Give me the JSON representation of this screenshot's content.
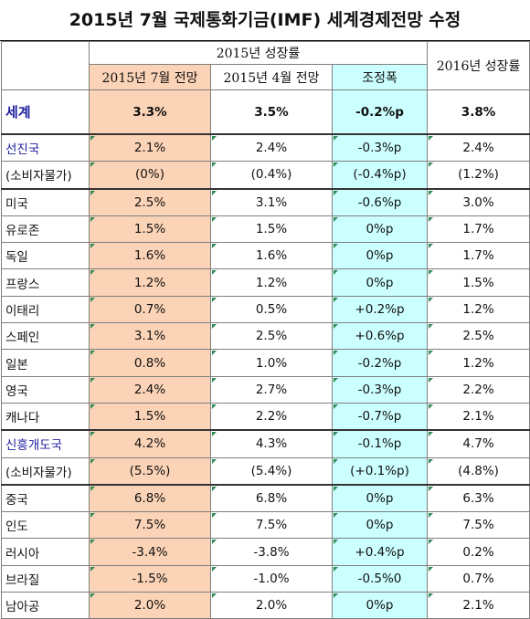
{
  "title": "2015년 7월 국제통화기금(IMF) 세계경제전망 수정",
  "header": {
    "group_2015": "2015년 성장률",
    "col_jul": "2015년 7월 전망",
    "col_apr": "2015년 4월 전망",
    "col_adj": "조정폭",
    "col_2016": "2016년 성장률"
  },
  "rows": [
    {
      "name": "세계",
      "jul": "3.3%",
      "apr": "3.5%",
      "adj": "-0.2%p",
      "y2016": "3.8%"
    },
    {
      "name": "선진국",
      "jul": "2.1%",
      "apr": "2.4%",
      "adj": "-0.3%p",
      "y2016": "2.4%"
    },
    {
      "name": "(소비자물가)",
      "jul": "(0%)",
      "apr": "(0.4%)",
      "adj": "(-0.4%p)",
      "y2016": "(1.2%)"
    },
    {
      "name": "미국",
      "jul": "2.5%",
      "apr": "3.1%",
      "adj": "-0.6%p",
      "y2016": "3.0%"
    },
    {
      "name": "유로존",
      "jul": "1.5%",
      "apr": "1.5%",
      "adj": "0%p",
      "y2016": "1.7%"
    },
    {
      "name": "독일",
      "jul": "1.6%",
      "apr": "1.6%",
      "adj": "0%p",
      "y2016": "1.7%"
    },
    {
      "name": "프랑스",
      "jul": "1.2%",
      "apr": "1.2%",
      "adj": "0%p",
      "y2016": "1.5%"
    },
    {
      "name": "이태리",
      "jul": "0.7%",
      "apr": "0.5%",
      "adj": "+0.2%p",
      "y2016": "1.2%"
    },
    {
      "name": "스페인",
      "jul": "3.1%",
      "apr": "2.5%",
      "adj": "+0.6%p",
      "y2016": "2.5%"
    },
    {
      "name": "일본",
      "jul": "0.8%",
      "apr": "1.0%",
      "adj": "-0.2%p",
      "y2016": "1.2%"
    },
    {
      "name": "영국",
      "jul": "2.4%",
      "apr": "2.7%",
      "adj": "-0.3%p",
      "y2016": "2.2%"
    },
    {
      "name": "캐나다",
      "jul": "1.5%",
      "apr": "2.2%",
      "adj": "-0.7%p",
      "y2016": "2.1%"
    },
    {
      "name": "신흥개도국",
      "jul": "4.2%",
      "apr": "4.3%",
      "adj": "-0.1%p",
      "y2016": "4.7%"
    },
    {
      "name": "(소비자물가)",
      "jul": "(5.5%)",
      "apr": "(5.4%)",
      "adj": "(+0.1%p)",
      "y2016": "(4.8%)"
    },
    {
      "name": "중국",
      "jul": "6.8%",
      "apr": "6.8%",
      "adj": "0%p",
      "y2016": "6.3%"
    },
    {
      "name": "인도",
      "jul": "7.5%",
      "apr": "7.5%",
      "adj": "0%p",
      "y2016": "7.5%"
    },
    {
      "name": "러시아",
      "jul": "-3.4%",
      "apr": "-3.8%",
      "adj": "+0.4%p",
      "y2016": "0.2%"
    },
    {
      "name": "브라질",
      "jul": "-1.5%",
      "apr": "-1.0%",
      "adj": "-0.5%0",
      "y2016": "0.7%"
    },
    {
      "name": "남아공",
      "jul": "2.0%",
      "apr": "2.0%",
      "adj": "0%p",
      "y2016": "2.1%"
    }
  ],
  "colors": {
    "peach": "#fbd3b6",
    "cyan": "#ccffff",
    "blue_label": "#1f1f9e"
  }
}
